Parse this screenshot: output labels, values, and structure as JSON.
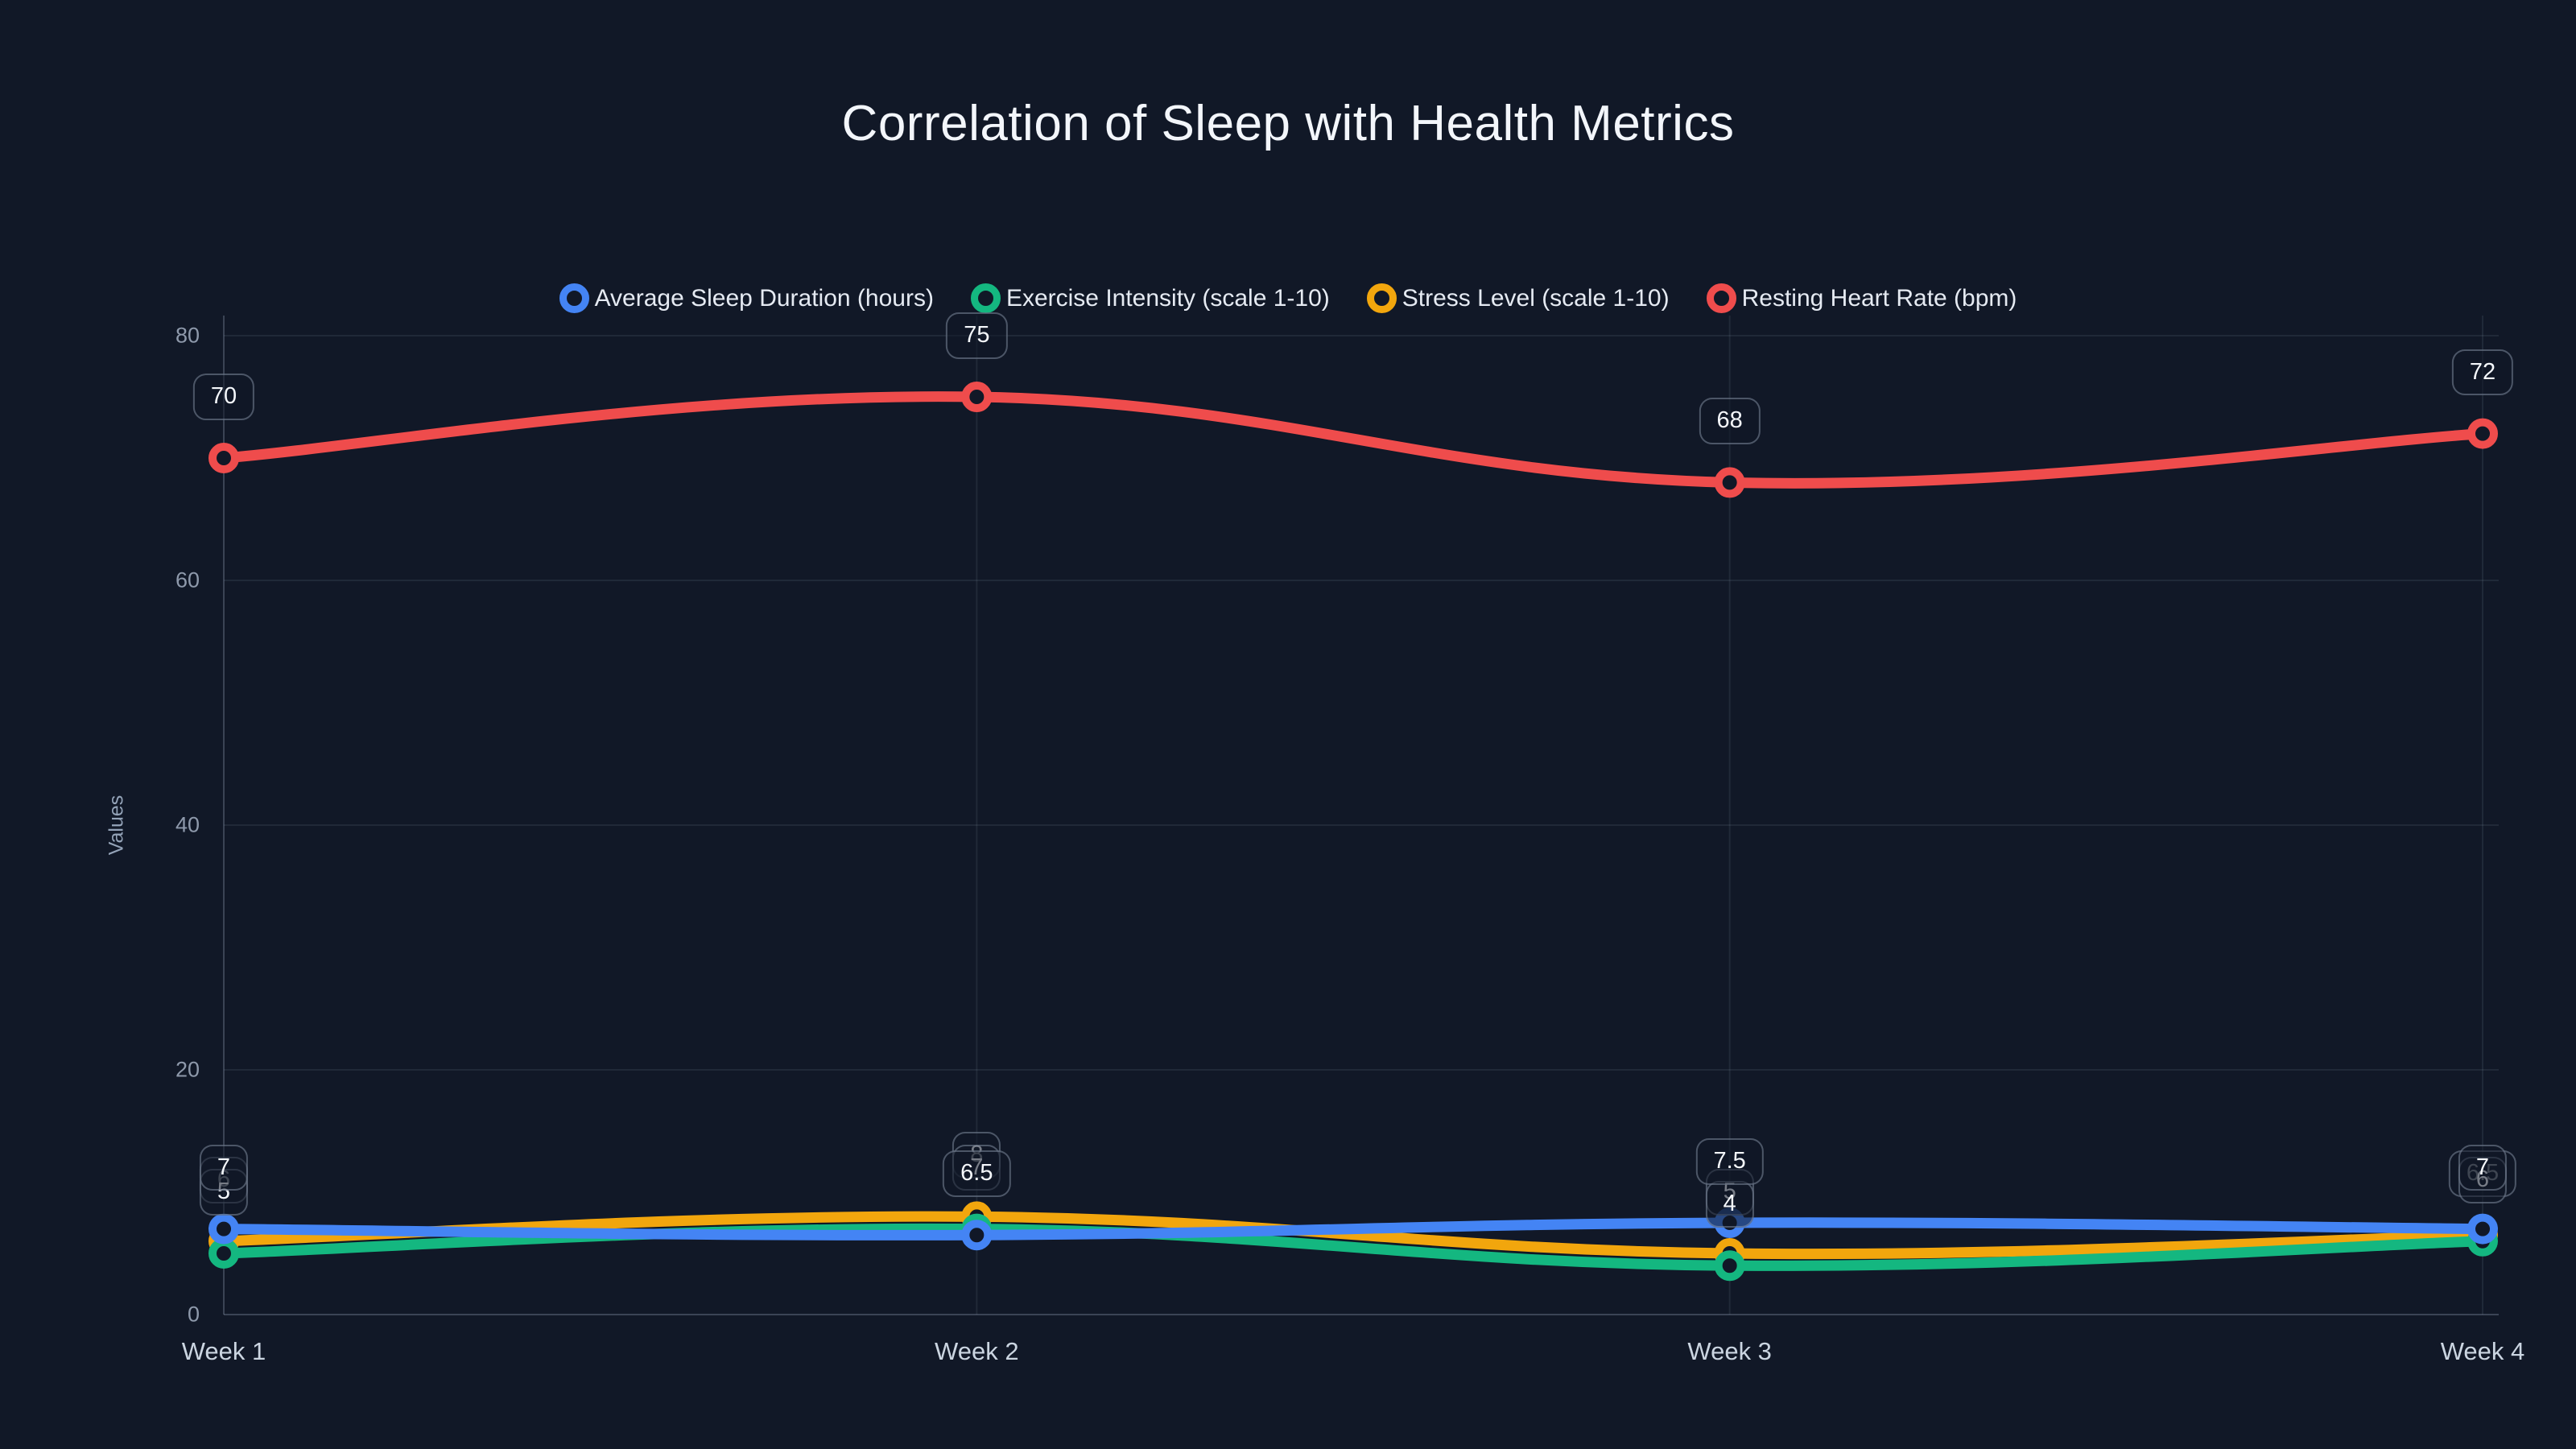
{
  "page": {
    "background_color": "#111827"
  },
  "chart": {
    "title": "Correlation of Sleep with Health Metrics",
    "y_axis_title": "Values",
    "x_tick_labels": [
      "Week 1",
      "Week 2",
      "Week 3",
      "Week 4"
    ],
    "y_tick_labels": [
      "0",
      "20",
      "40",
      "60",
      "80"
    ]
  },
  "chart_data": {
    "type": "line",
    "title": "Correlation of Sleep with Health Metrics",
    "xlabel": "",
    "ylabel": "Values",
    "categories": [
      "Week 1",
      "Week 2",
      "Week 3",
      "Week 4"
    ],
    "series": [
      {
        "name": "Average Sleep Duration (hours)",
        "color": "#4484f4",
        "values": [
          7,
          6.5,
          7.5,
          7
        ]
      },
      {
        "name": "Exercise Intensity (scale 1-10)",
        "color": "#14b780",
        "values": [
          5,
          7,
          4,
          6
        ]
      },
      {
        "name": "Stress Level (scale 1-10)",
        "color": "#f2a60d",
        "values": [
          6,
          8,
          5,
          6.5
        ]
      },
      {
        "name": "Resting Heart Rate (bpm)",
        "color": "#ef4c4c",
        "values": [
          70,
          75,
          68,
          72
        ]
      }
    ],
    "data_labels": {
      "week_1": [
        "7",
        "5",
        "6",
        "70"
      ],
      "week_2": [
        "6.5",
        "7",
        "8",
        "75"
      ],
      "week_3": [
        "7.5",
        "4",
        "5",
        "68"
      ],
      "week_4": [
        "7",
        "6",
        "6.5",
        "72"
      ]
    },
    "ylim": [
      0,
      80
    ],
    "yticks": [
      0,
      20,
      40,
      60,
      80
    ],
    "grid": true,
    "legend_position": "top",
    "marker_style": "hollow-circle",
    "line_smoothing": true,
    "theme": {
      "background": "#111827",
      "grid_color": "rgba(148,163,184,0.12)",
      "axis_border_color": "rgba(148,163,184,0.32)",
      "title_color": "#f3f6fb",
      "tick_color": "#8e99ab",
      "category_tick_color": "#cbd5e1",
      "legend_text_color": "#e5eaf2",
      "datalabel_text_color": "#f4f7fb"
    }
  }
}
